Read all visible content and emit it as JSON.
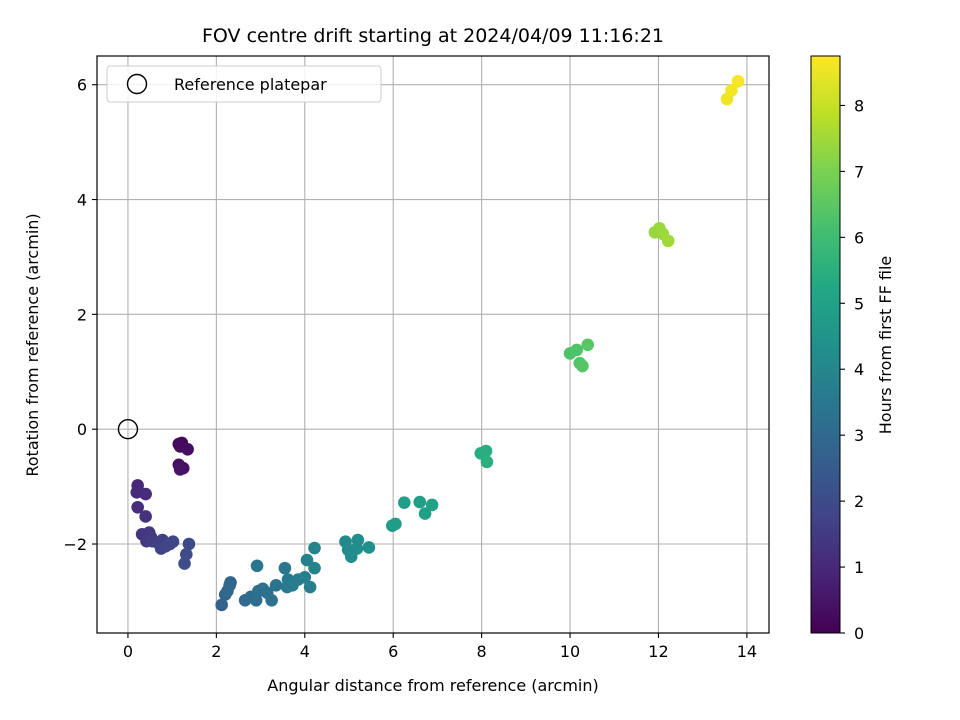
{
  "chart_data": {
    "type": "scatter",
    "title": "FOV centre drift starting at 2024/04/09 11:16:21",
    "xlabel": "Angular distance from reference (arcmin)",
    "ylabel": "Rotation from reference (arcmin)",
    "xlim": [
      -0.7,
      14.5
    ],
    "ylim": [
      -3.55,
      6.5
    ],
    "xticks": [
      0,
      2,
      4,
      6,
      8,
      10,
      12,
      14
    ],
    "yticks": [
      -2,
      0,
      2,
      4,
      6
    ],
    "grid": true,
    "legend": {
      "location": "upper-left",
      "entries": [
        {
          "label": "Reference platepar",
          "marker": "open-circle"
        }
      ]
    },
    "reference_point": {
      "x": 0,
      "y": 0
    },
    "colorbar": {
      "label": "Hours from first FF file",
      "colormap": "viridis",
      "range": [
        0,
        8.75
      ],
      "ticks": [
        0,
        1,
        2,
        3,
        4,
        5,
        6,
        7,
        8
      ]
    },
    "series": [
      {
        "points": [
          {
            "x": 1.15,
            "y": -0.26,
            "c": 0.15
          },
          {
            "x": 1.22,
            "y": -0.24,
            "c": 0.2
          },
          {
            "x": 1.18,
            "y": -0.3,
            "c": 0.25
          },
          {
            "x": 1.35,
            "y": -0.35,
            "c": 0.3
          },
          {
            "x": 1.15,
            "y": -0.62,
            "c": 0.35
          },
          {
            "x": 1.25,
            "y": -0.68,
            "c": 0.4
          },
          {
            "x": 1.18,
            "y": -0.7,
            "c": 0.45
          },
          {
            "x": 0.22,
            "y": -0.98,
            "c": 1.0
          },
          {
            "x": 0.2,
            "y": -1.1,
            "c": 1.05
          },
          {
            "x": 0.4,
            "y": -1.13,
            "c": 1.1
          },
          {
            "x": 0.22,
            "y": -1.36,
            "c": 1.15
          },
          {
            "x": 0.4,
            "y": -1.52,
            "c": 1.25
          },
          {
            "x": 0.32,
            "y": -1.83,
            "c": 1.35
          },
          {
            "x": 0.48,
            "y": -1.8,
            "c": 1.4
          },
          {
            "x": 0.52,
            "y": -1.88,
            "c": 1.45
          },
          {
            "x": 0.42,
            "y": -1.95,
            "c": 1.5
          },
          {
            "x": 0.55,
            "y": -1.95,
            "c": 1.55
          },
          {
            "x": 0.68,
            "y": -1.98,
            "c": 1.6
          },
          {
            "x": 0.78,
            "y": -1.93,
            "c": 1.65
          },
          {
            "x": 0.75,
            "y": -2.08,
            "c": 1.7
          },
          {
            "x": 0.85,
            "y": -2.04,
            "c": 1.75
          },
          {
            "x": 0.95,
            "y": -2.0,
            "c": 1.8
          },
          {
            "x": 1.02,
            "y": -1.96,
            "c": 1.85
          },
          {
            "x": 1.38,
            "y": -2.0,
            "c": 1.95
          },
          {
            "x": 1.32,
            "y": -2.18,
            "c": 2.0
          },
          {
            "x": 1.28,
            "y": -2.34,
            "c": 2.05
          },
          {
            "x": 2.12,
            "y": -3.06,
            "c": 2.75
          },
          {
            "x": 2.2,
            "y": -2.88,
            "c": 2.8
          },
          {
            "x": 2.3,
            "y": -2.72,
            "c": 2.85
          },
          {
            "x": 2.32,
            "y": -2.67,
            "c": 2.9
          },
          {
            "x": 2.25,
            "y": -2.82,
            "c": 2.95
          },
          {
            "x": 2.65,
            "y": -2.98,
            "c": 3.0
          },
          {
            "x": 2.78,
            "y": -2.92,
            "c": 3.05
          },
          {
            "x": 2.9,
            "y": -2.98,
            "c": 3.1
          },
          {
            "x": 2.95,
            "y": -2.82,
            "c": 3.15
          },
          {
            "x": 3.05,
            "y": -2.78,
            "c": 3.2
          },
          {
            "x": 3.15,
            "y": -2.85,
            "c": 3.25
          },
          {
            "x": 3.25,
            "y": -2.98,
            "c": 3.3
          },
          {
            "x": 3.35,
            "y": -2.72,
            "c": 3.35
          },
          {
            "x": 2.92,
            "y": -2.38,
            "c": 3.4
          },
          {
            "x": 3.55,
            "y": -2.42,
            "c": 3.45
          },
          {
            "x": 3.62,
            "y": -2.62,
            "c": 3.5
          },
          {
            "x": 3.6,
            "y": -2.75,
            "c": 3.55
          },
          {
            "x": 3.72,
            "y": -2.72,
            "c": 3.6
          },
          {
            "x": 3.85,
            "y": -2.62,
            "c": 3.65
          },
          {
            "x": 4.0,
            "y": -2.58,
            "c": 3.7
          },
          {
            "x": 4.12,
            "y": -2.75,
            "c": 3.75
          },
          {
            "x": 4.05,
            "y": -2.28,
            "c": 3.8
          },
          {
            "x": 4.22,
            "y": -2.42,
            "c": 3.85
          },
          {
            "x": 4.22,
            "y": -2.07,
            "c": 3.9
          },
          {
            "x": 4.92,
            "y": -1.96,
            "c": 4.1
          },
          {
            "x": 4.98,
            "y": -2.1,
            "c": 4.15
          },
          {
            "x": 5.05,
            "y": -2.22,
            "c": 4.2
          },
          {
            "x": 5.2,
            "y": -1.93,
            "c": 4.25
          },
          {
            "x": 5.18,
            "y": -2.08,
            "c": 4.3
          },
          {
            "x": 5.45,
            "y": -2.06,
            "c": 4.35
          },
          {
            "x": 5.98,
            "y": -1.68,
            "c": 4.75
          },
          {
            "x": 6.05,
            "y": -1.65,
            "c": 4.8
          },
          {
            "x": 6.25,
            "y": -1.28,
            "c": 4.85
          },
          {
            "x": 6.6,
            "y": -1.27,
            "c": 4.9
          },
          {
            "x": 6.72,
            "y": -1.47,
            "c": 4.95
          },
          {
            "x": 6.88,
            "y": -1.32,
            "c": 5.0
          },
          {
            "x": 7.98,
            "y": -0.42,
            "c": 5.4
          },
          {
            "x": 8.1,
            "y": -0.38,
            "c": 5.45
          },
          {
            "x": 8.12,
            "y": -0.57,
            "c": 5.5
          },
          {
            "x": 10.0,
            "y": 1.32,
            "c": 6.25
          },
          {
            "x": 10.15,
            "y": 1.38,
            "c": 6.3
          },
          {
            "x": 10.22,
            "y": 1.15,
            "c": 6.35
          },
          {
            "x": 10.28,
            "y": 1.1,
            "c": 6.4
          },
          {
            "x": 10.4,
            "y": 1.47,
            "c": 6.45
          },
          {
            "x": 11.92,
            "y": 3.43,
            "c": 7.35
          },
          {
            "x": 12.02,
            "y": 3.5,
            "c": 7.4
          },
          {
            "x": 12.1,
            "y": 3.4,
            "c": 7.45
          },
          {
            "x": 12.22,
            "y": 3.28,
            "c": 7.5
          },
          {
            "x": 13.55,
            "y": 5.75,
            "c": 8.55
          },
          {
            "x": 13.65,
            "y": 5.9,
            "c": 8.6
          },
          {
            "x": 13.8,
            "y": 6.06,
            "c": 8.65
          }
        ]
      }
    ]
  },
  "colors": {
    "axes": "#000000",
    "grid": "#b0b0b0",
    "legend_border": "#cccccc"
  }
}
